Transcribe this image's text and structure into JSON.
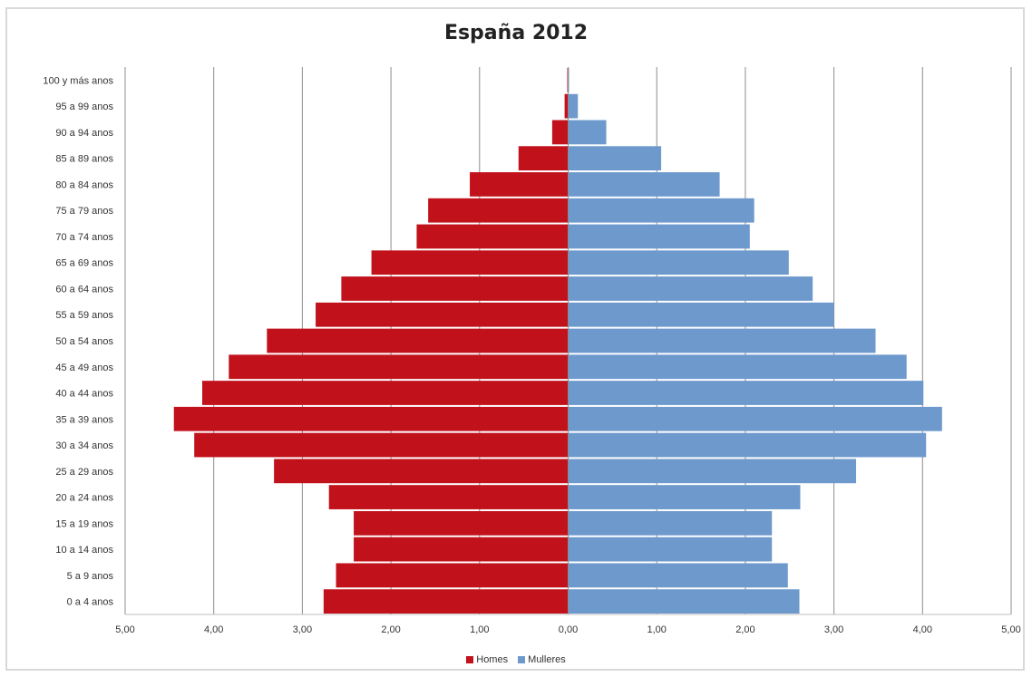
{
  "chart_data": {
    "type": "bar",
    "orientation": "horizontal",
    "title": "España 2012",
    "categories": [
      "0 a 4 anos",
      "5 a 9 anos",
      "10 a 14 anos",
      "15 a 19 anos",
      "20 a 24 anos",
      "25 a 29 anos",
      "30 a 34 anos",
      "35 a 39 anos",
      "40 a 44 anos",
      "45 a 49 anos",
      "50 a 54 anos",
      "55 a 59 anos",
      "60 a 64 anos",
      "65 a 69 anos",
      "70 a 74 anos",
      "75 a 79 anos",
      "80 a 84 anos",
      "85 a 89 anos",
      "90 a 94 anos",
      "95 a 99 anos",
      "100 y más anos"
    ],
    "series": [
      {
        "name": "Homes",
        "color": "#c1121c",
        "values": [
          2.76,
          2.62,
          2.42,
          2.42,
          2.7,
          3.32,
          4.22,
          4.45,
          4.13,
          3.83,
          3.4,
          2.85,
          2.56,
          2.22,
          1.71,
          1.58,
          1.11,
          0.56,
          0.18,
          0.04,
          0.01
        ]
      },
      {
        "name": "Mulleres",
        "color": "#6d99cd",
        "values": [
          2.61,
          2.48,
          2.3,
          2.3,
          2.62,
          3.25,
          4.04,
          4.22,
          4.01,
          3.82,
          3.47,
          3.0,
          2.76,
          2.49,
          2.05,
          2.1,
          1.71,
          1.05,
          0.43,
          0.11,
          0.01
        ]
      }
    ],
    "xlim": [
      -5,
      5
    ],
    "xticks": [
      "5,00",
      "4,00",
      "3,00",
      "2,00",
      "1,00",
      "0,00",
      "1,00",
      "2,00",
      "3,00",
      "4,00",
      "5,00"
    ],
    "grid": true,
    "legend_position": "bottom"
  }
}
